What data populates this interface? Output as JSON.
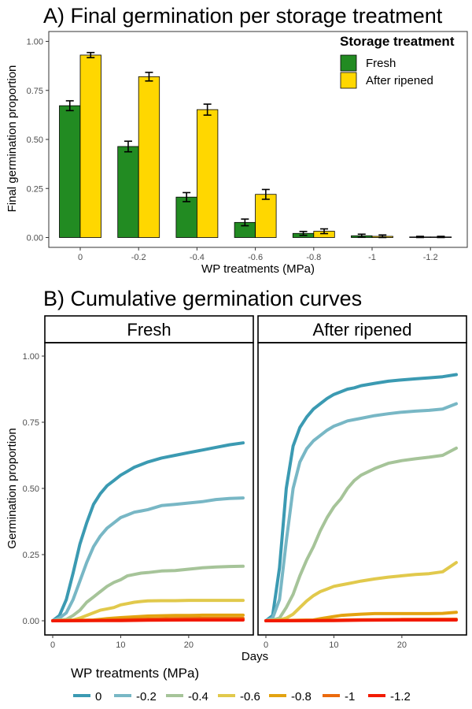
{
  "chart_data": [
    {
      "type": "bar",
      "title": "A) Final germination per storage treatment",
      "xlabel": "WP treatments (MPa)",
      "ylabel": "Final germination proportion",
      "ylim": [
        0,
        1.0
      ],
      "yticks": [
        "0.00",
        "0.25",
        "0.50",
        "0.75",
        "1.00"
      ],
      "grid": false,
      "categories": [
        "0",
        "-0.2",
        "-0.4",
        "-0.6",
        "-0.8",
        "-1",
        "-1.2"
      ],
      "legend": {
        "title": "Storage treatment",
        "position": "top-right"
      },
      "series": [
        {
          "name": "Fresh",
          "color": "#228B22",
          "values": [
            0.672,
            0.464,
            0.206,
            0.077,
            0.021,
            0.009,
            0.003
          ],
          "errors": [
            0.025,
            0.027,
            0.023,
            0.017,
            0.01,
            0.008,
            0.003
          ]
        },
        {
          "name": "After ripened",
          "color": "#FFD700",
          "values": [
            0.93,
            0.82,
            0.652,
            0.22,
            0.032,
            0.006,
            0.003
          ],
          "errors": [
            0.013,
            0.022,
            0.028,
            0.025,
            0.012,
            0.007,
            0.003
          ]
        }
      ]
    },
    {
      "type": "line",
      "title": "B) Cumulative germination curves",
      "xlabel": "Days",
      "ylabel": "Germination proportion",
      "ylim": [
        0,
        1.0
      ],
      "xlim": [
        0,
        28
      ],
      "xticks": [
        "0",
        "10",
        "20"
      ],
      "yticks": [
        "0.00",
        "0.25",
        "0.50",
        "0.75",
        "1.00"
      ],
      "grid": false,
      "legend": {
        "title": "WP treatments (MPa)",
        "position": "bottom"
      },
      "series_colors": {
        "0": "#3B9AB2",
        "-0.2": "#78B7C5",
        "-0.4": "#A6C499",
        "-0.6": "#E1C94C",
        "-0.8": "#E3A311",
        "-1": "#EB6A0D",
        "-1.2": "#F21A00"
      },
      "series_names": [
        "0",
        "-0.2",
        "-0.4",
        "-0.6",
        "-0.8",
        "-1",
        "-1.2"
      ],
      "panels": [
        {
          "label": "Fresh",
          "series": [
            {
              "name": "0",
              "x": [
                0,
                1,
                2,
                3,
                4,
                5,
                6,
                7,
                8,
                9,
                10,
                11,
                12,
                13,
                14,
                16,
                18,
                20,
                22,
                24,
                26,
                28
              ],
              "y": [
                0,
                0.02,
                0.08,
                0.18,
                0.29,
                0.37,
                0.44,
                0.48,
                0.51,
                0.53,
                0.55,
                0.565,
                0.58,
                0.59,
                0.6,
                0.615,
                0.625,
                0.635,
                0.645,
                0.655,
                0.665,
                0.672
              ]
            },
            {
              "name": "-0.2",
              "x": [
                0,
                1,
                2,
                3,
                4,
                5,
                6,
                7,
                8,
                9,
                10,
                11,
                12,
                13,
                14,
                16,
                18,
                20,
                22,
                24,
                26,
                28
              ],
              "y": [
                0,
                0.01,
                0.03,
                0.08,
                0.15,
                0.22,
                0.28,
                0.32,
                0.35,
                0.37,
                0.39,
                0.4,
                0.41,
                0.415,
                0.42,
                0.435,
                0.44,
                0.445,
                0.45,
                0.458,
                0.462,
                0.464
              ]
            },
            {
              "name": "-0.4",
              "x": [
                0,
                2,
                3,
                4,
                5,
                6,
                7,
                8,
                9,
                10,
                11,
                12,
                13,
                14,
                16,
                18,
                20,
                22,
                24,
                26,
                28
              ],
              "y": [
                0,
                0.005,
                0.02,
                0.04,
                0.07,
                0.09,
                0.11,
                0.13,
                0.145,
                0.155,
                0.17,
                0.175,
                0.18,
                0.182,
                0.188,
                0.19,
                0.195,
                0.2,
                0.203,
                0.205,
                0.206
              ]
            },
            {
              "name": "-0.6",
              "x": [
                0,
                3,
                4,
                5,
                6,
                7,
                8,
                9,
                10,
                11,
                12,
                13,
                14,
                16,
                18,
                20,
                22,
                24,
                26,
                28
              ],
              "y": [
                0,
                0.003,
                0.01,
                0.02,
                0.03,
                0.04,
                0.045,
                0.05,
                0.06,
                0.065,
                0.07,
                0.073,
                0.075,
                0.076,
                0.076,
                0.077,
                0.077,
                0.077,
                0.077,
                0.077
              ]
            },
            {
              "name": "-0.8",
              "x": [
                0,
                6,
                8,
                10,
                12,
                14,
                16,
                18,
                20,
                22,
                24,
                26,
                28
              ],
              "y": [
                0,
                0.003,
                0.008,
                0.012,
                0.015,
                0.018,
                0.019,
                0.02,
                0.02,
                0.021,
                0.021,
                0.021,
                0.021
              ]
            },
            {
              "name": "-1",
              "x": [
                0,
                8,
                10,
                14,
                18,
                22,
                28
              ],
              "y": [
                0,
                0.002,
                0.004,
                0.006,
                0.008,
                0.009,
                0.009
              ]
            },
            {
              "name": "-1.2",
              "x": [
                0,
                10,
                14,
                20,
                28
              ],
              "y": [
                0,
                0.001,
                0.002,
                0.003,
                0.003
              ]
            }
          ]
        },
        {
          "label": "After ripened",
          "series": [
            {
              "name": "0",
              "x": [
                0,
                1,
                2,
                3,
                4,
                5,
                6,
                7,
                8,
                9,
                10,
                11,
                12,
                13,
                14,
                16,
                18,
                20,
                22,
                24,
                26,
                28
              ],
              "y": [
                0,
                0.02,
                0.2,
                0.5,
                0.66,
                0.73,
                0.77,
                0.8,
                0.82,
                0.84,
                0.855,
                0.865,
                0.875,
                0.88,
                0.888,
                0.897,
                0.905,
                0.91,
                0.914,
                0.918,
                0.922,
                0.93
              ]
            },
            {
              "name": "-0.2",
              "x": [
                0,
                1,
                2,
                3,
                4,
                5,
                6,
                7,
                8,
                9,
                10,
                11,
                12,
                13,
                14,
                16,
                18,
                20,
                22,
                24,
                26,
                28
              ],
              "y": [
                0,
                0.01,
                0.08,
                0.3,
                0.5,
                0.6,
                0.65,
                0.68,
                0.7,
                0.72,
                0.735,
                0.745,
                0.755,
                0.76,
                0.765,
                0.775,
                0.782,
                0.788,
                0.792,
                0.795,
                0.8,
                0.82
              ]
            },
            {
              "name": "-0.4",
              "x": [
                0,
                1,
                2,
                3,
                4,
                5,
                6,
                7,
                8,
                9,
                10,
                11,
                12,
                13,
                14,
                16,
                18,
                20,
                22,
                24,
                26,
                28
              ],
              "y": [
                0,
                0.003,
                0.01,
                0.05,
                0.1,
                0.17,
                0.23,
                0.28,
                0.34,
                0.39,
                0.43,
                0.46,
                0.5,
                0.53,
                0.55,
                0.575,
                0.595,
                0.605,
                0.612,
                0.618,
                0.625,
                0.652
              ]
            },
            {
              "name": "-0.6",
              "x": [
                0,
                2,
                3,
                4,
                5,
                6,
                7,
                8,
                9,
                10,
                11,
                12,
                13,
                14,
                16,
                18,
                20,
                22,
                24,
                26,
                28
              ],
              "y": [
                0,
                0.003,
                0.01,
                0.025,
                0.05,
                0.075,
                0.095,
                0.11,
                0.12,
                0.13,
                0.135,
                0.14,
                0.145,
                0.15,
                0.158,
                0.165,
                0.17,
                0.175,
                0.178,
                0.185,
                0.22
              ]
            },
            {
              "name": "-0.8",
              "x": [
                0,
                7,
                8,
                9,
                10,
                11,
                12,
                14,
                16,
                18,
                20,
                22,
                24,
                26,
                28
              ],
              "y": [
                0,
                0.003,
                0.008,
                0.012,
                0.016,
                0.02,
                0.022,
                0.025,
                0.027,
                0.027,
                0.027,
                0.027,
                0.027,
                0.028,
                0.032
              ]
            },
            {
              "name": "-1",
              "x": [
                0,
                10,
                14,
                20,
                28
              ],
              "y": [
                0,
                0.002,
                0.004,
                0.005,
                0.006
              ]
            },
            {
              "name": "-1.2",
              "x": [
                0,
                10,
                14,
                20,
                28
              ],
              "y": [
                0,
                0.001,
                0.002,
                0.003,
                0.003
              ]
            }
          ]
        }
      ]
    }
  ]
}
